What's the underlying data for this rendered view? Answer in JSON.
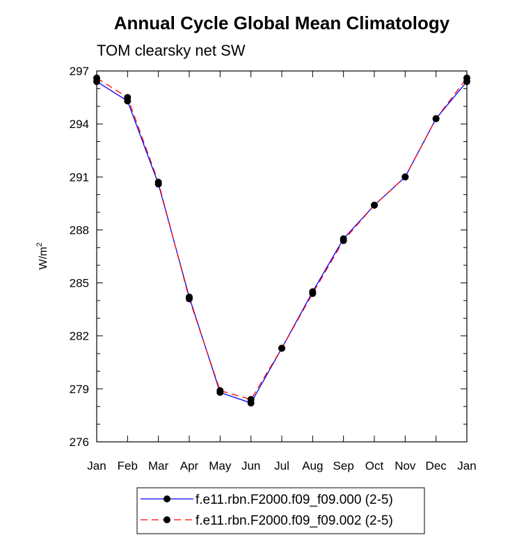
{
  "chart_data": {
    "type": "line",
    "title": "Annual Cycle Global Mean Climatology",
    "subtitle": "TOM clearsky net SW",
    "ylabel": "W/m",
    "ylabel_superscript": "2",
    "xlabel": "",
    "ylim": [
      276,
      297
    ],
    "yticks": [
      "297",
      "294",
      "291",
      "288",
      "285",
      "282",
      "279",
      "276"
    ],
    "categories": [
      "Jan",
      "Feb",
      "Mar",
      "Apr",
      "May",
      "Jun",
      "Jul",
      "Aug",
      "Sep",
      "Oct",
      "Nov",
      "Dec",
      "Jan"
    ],
    "series": [
      {
        "name": "f.e11.rbn.F2000.f09_f09.000 (2-5)",
        "color": "#0000ff",
        "dash": "solid",
        "values": [
          296.4,
          295.3,
          290.6,
          284.2,
          278.8,
          278.2,
          281.3,
          284.5,
          287.5,
          289.4,
          291.0,
          294.3,
          296.4
        ]
      },
      {
        "name": "f.e11.rbn.F2000.f09_f09.002 (2-5)",
        "color": "#ff0000",
        "dash": "dashed",
        "values": [
          296.6,
          295.5,
          290.7,
          284.1,
          278.9,
          278.4,
          281.3,
          284.4,
          287.4,
          289.4,
          291.0,
          294.3,
          296.6
        ]
      }
    ]
  }
}
